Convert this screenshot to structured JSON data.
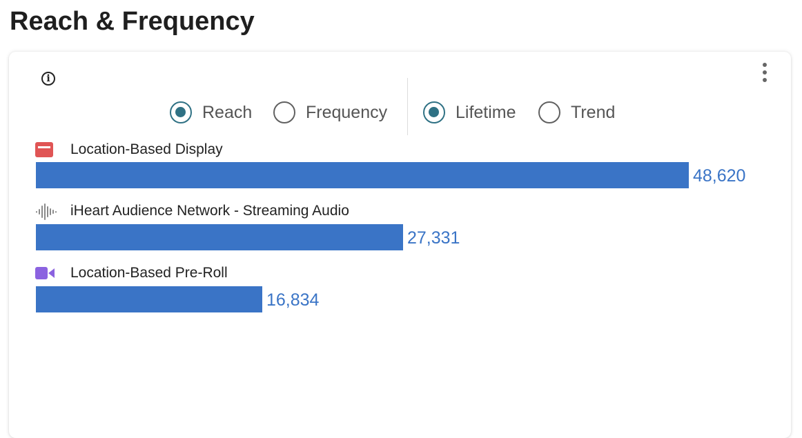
{
  "page": {
    "title": "Reach & Frequency"
  },
  "card": {
    "info_icon": "info-icon",
    "menu_icon": "more-vertical-icon"
  },
  "controls": {
    "metric": [
      {
        "label": "Reach",
        "selected": true
      },
      {
        "label": "Frequency",
        "selected": false
      }
    ],
    "period": [
      {
        "label": "Lifetime",
        "selected": true
      },
      {
        "label": "Trend",
        "selected": false
      }
    ]
  },
  "colors": {
    "bar": "#3a74c6",
    "radio_selected": "#2f7184",
    "display_icon": "#e05555",
    "audio_icon": "#8a8a8a",
    "video_icon": "#8b62e0"
  },
  "chart_data": {
    "type": "bar",
    "orientation": "horizontal",
    "categories": [
      "Location-Based Display",
      "iHeart Audience Network - Streaming Audio",
      "Location-Based Pre-Roll"
    ],
    "values": [
      48620,
      27331,
      16834
    ],
    "value_labels": [
      "48,620",
      "27,331",
      "16,834"
    ],
    "category_icons": [
      "display-ad-icon",
      "audio-waveform-icon",
      "video-camera-icon"
    ],
    "xlim": [
      0,
      48620
    ]
  }
}
